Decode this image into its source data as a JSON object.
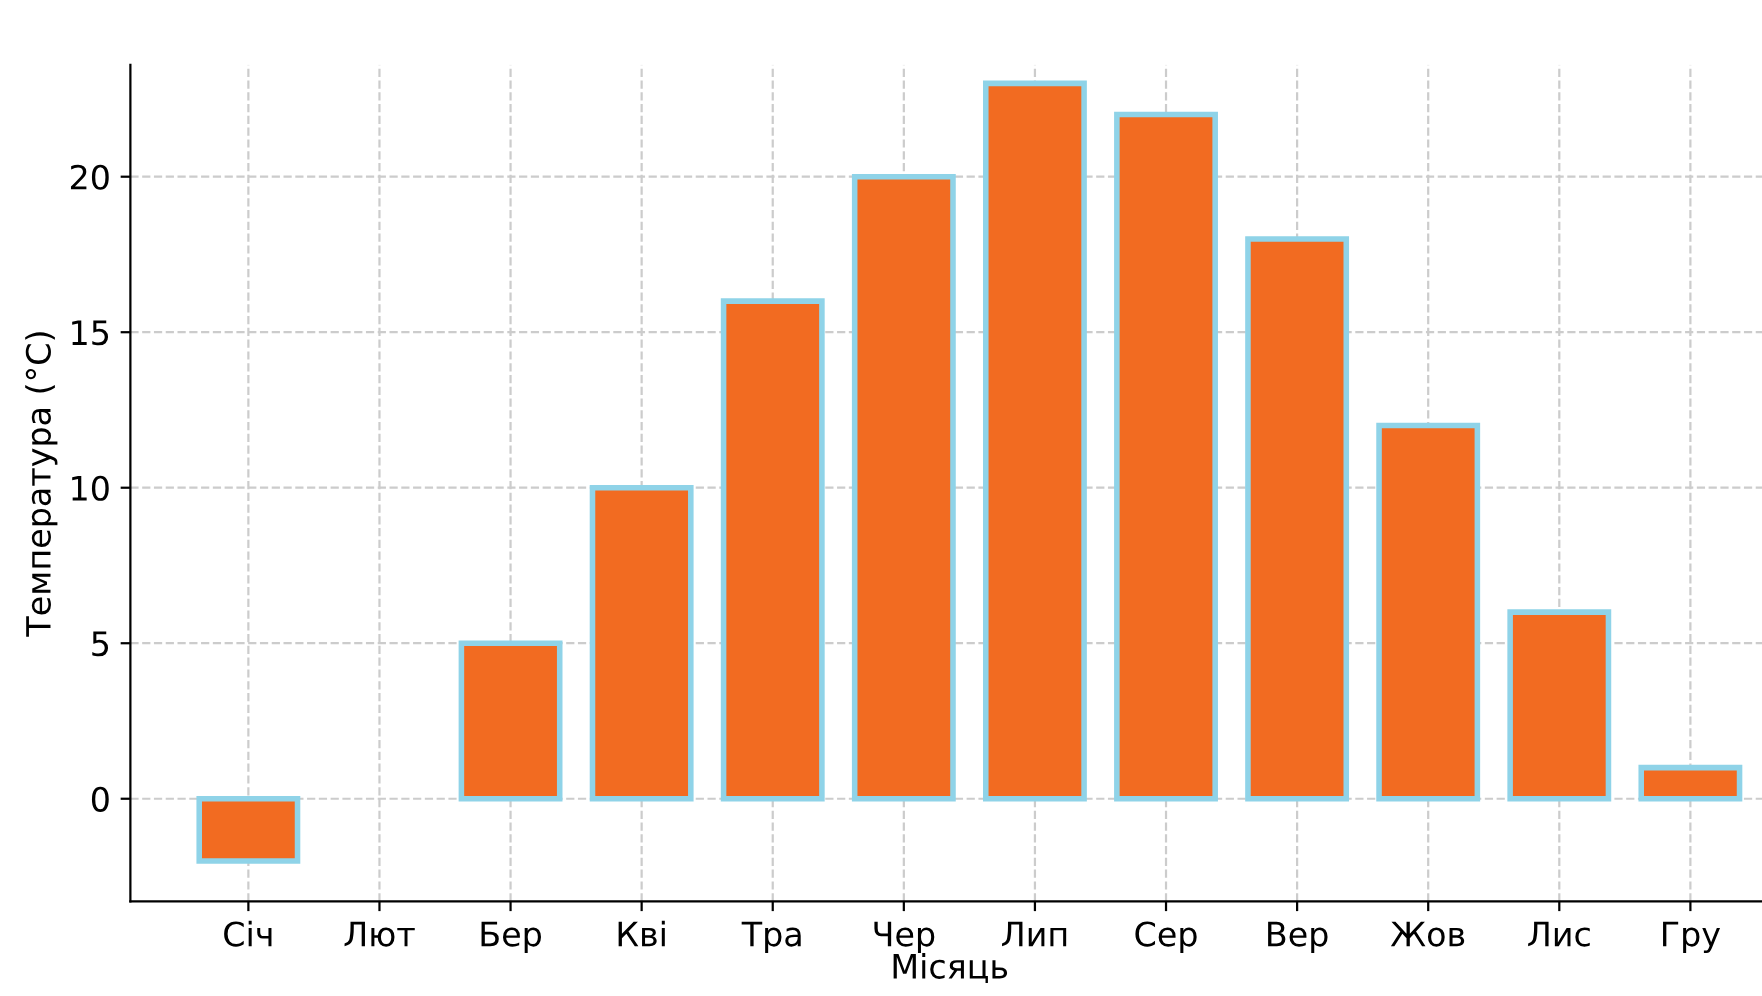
{
  "chart_data": {
    "type": "bar",
    "xlabel": "Місяць",
    "ylabel": "Температура (°C)",
    "categories": [
      "Січ",
      "Лют",
      "Бер",
      "Кві",
      "Тра",
      "Чер",
      "Лип",
      "Сер",
      "Вер",
      "Жов",
      "Лис",
      "Гру"
    ],
    "values": [
      -2,
      null,
      5,
      10,
      16,
      20,
      23,
      22,
      18,
      12,
      6,
      1
    ],
    "color": "#f26b21",
    "ylim": [
      -3.3,
      23.6
    ],
    "yticks": [
      0,
      5,
      10,
      15,
      20
    ],
    "grid": true
  }
}
